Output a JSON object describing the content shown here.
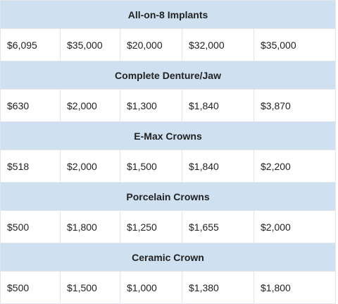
{
  "table": {
    "sections": [
      {
        "title": "All-on-8 Implants",
        "values": [
          "$6,095",
          "$35,000",
          "$20,000",
          "$32,000",
          "$35,000"
        ]
      },
      {
        "title": "Complete Denture/Jaw",
        "values": [
          "$630",
          "$2,000",
          "$1,300",
          "$1,840",
          "$3,870"
        ]
      },
      {
        "title": "E-Max Crowns",
        "values": [
          "$518",
          "$2,000",
          "$1,500",
          "$1,840",
          "$2,200"
        ]
      },
      {
        "title": "Porcelain Crowns",
        "values": [
          "$500",
          "$1,800",
          "$1,250",
          "$1,655",
          "$2,000"
        ]
      },
      {
        "title": "Ceramic Crown",
        "values": [
          "$500",
          "$1,500",
          "$1,000",
          "$1,380",
          "$1,800"
        ]
      }
    ]
  }
}
